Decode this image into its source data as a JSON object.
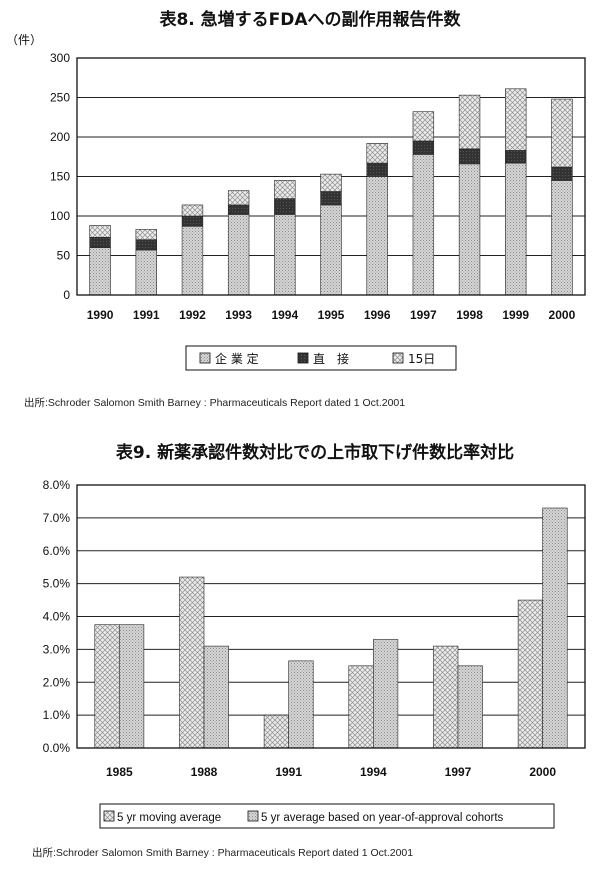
{
  "colors": {
    "background": "#ffffff",
    "frame": "#111111",
    "bar_dotted_fill": "#c9c9c9",
    "bar_dark_fill": "#3a3a3a",
    "bar_cross_fill": "#e2e2e2"
  },
  "chart_data": [
    {
      "type": "bar",
      "stacked": true,
      "title": "表8. 急増するFDAへの副作用報告件数",
      "ylabel": "（件）",
      "ylim": [
        0,
        300
      ],
      "yticks": [
        "0",
        "50",
        "100",
        "150",
        "200",
        "250",
        "300"
      ],
      "categories": [
        "1990",
        "1991",
        "1992",
        "1993",
        "1994",
        "1995",
        "1996",
        "1997",
        "1998",
        "1999",
        "2000"
      ],
      "grid": true,
      "legend_position": "bottom",
      "series": [
        {
          "name": "企 業 定",
          "pattern": "dotted",
          "values": [
            60,
            57,
            87,
            102,
            102,
            114,
            150,
            178,
            166,
            167,
            145
          ]
        },
        {
          "name": "直　接",
          "pattern": "solid-dark",
          "values": [
            13,
            13,
            13,
            12,
            20,
            17,
            17,
            17,
            19,
            16,
            17
          ]
        },
        {
          "name": "15日",
          "pattern": "crosshatch",
          "values": [
            15,
            13,
            14,
            18,
            23,
            22,
            25,
            37,
            68,
            78,
            86
          ]
        }
      ],
      "source": "出所:Schroder Salomon Smith Barney : Pharmaceuticals Report dated 1 Oct.2001"
    },
    {
      "type": "bar",
      "stacked": false,
      "title": "表9. 新薬承認件数対比での上市取下げ件数比率対比",
      "ylim": [
        0,
        8
      ],
      "yticks": [
        "0.0%",
        "1.0%",
        "2.0%",
        "3.0%",
        "4.0%",
        "5.0%",
        "6.0%",
        "7.0%",
        "8.0%"
      ],
      "categories": [
        "1985",
        "1988",
        "1991",
        "1994",
        "1997",
        "2000"
      ],
      "grid": true,
      "legend_position": "bottom",
      "series": [
        {
          "name": "5 yr moving average",
          "pattern": "crosshatch",
          "values": [
            3.75,
            5.2,
            1.0,
            2.5,
            3.1,
            4.5
          ]
        },
        {
          "name": "5 yr average based on year-of-approval cohorts",
          "pattern": "dotted",
          "values": [
            3.75,
            3.1,
            2.65,
            3.3,
            2.5,
            7.3
          ]
        }
      ],
      "source": "出所:Schroder Salomon Smith Barney : Pharmaceuticals Report dated 1 Oct.2001"
    }
  ]
}
